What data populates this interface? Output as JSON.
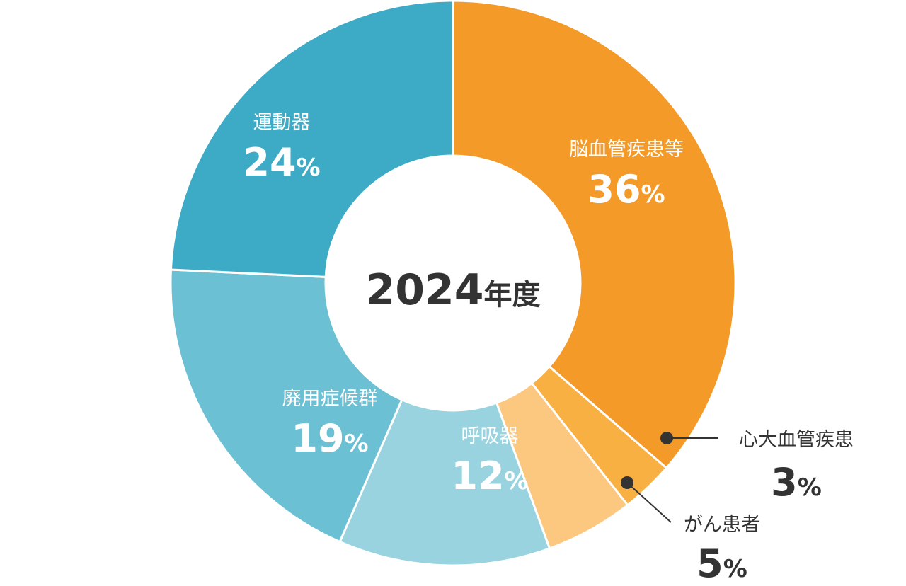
{
  "chart_data": {
    "type": "pie",
    "center_label": {
      "number": "2024",
      "suffix": "年度"
    },
    "slices": [
      {
        "name": "脳血管疾患等",
        "value": 36,
        "unit": "%",
        "color": "#F39A29",
        "label_position": "inside"
      },
      {
        "name": "心大血管疾患",
        "value": 3,
        "unit": "%",
        "color": "#F8B043",
        "label_position": "outside"
      },
      {
        "name": "がん患者",
        "value": 5,
        "unit": "%",
        "color": "#FCC77E",
        "label_position": "outside"
      },
      {
        "name": "呼吸器",
        "value": 12,
        "unit": "%",
        "color": "#98D3DF",
        "label_position": "inside"
      },
      {
        "name": "廃用症候群",
        "value": 19,
        "unit": "%",
        "color": "#6BC0D4",
        "label_position": "inside"
      },
      {
        "name": "運動器",
        "value": 24,
        "unit": "%",
        "color": "#3DAAC6",
        "label_position": "inside"
      }
    ],
    "start": "12 o'clock",
    "direction": "clockwise",
    "donut": true
  }
}
